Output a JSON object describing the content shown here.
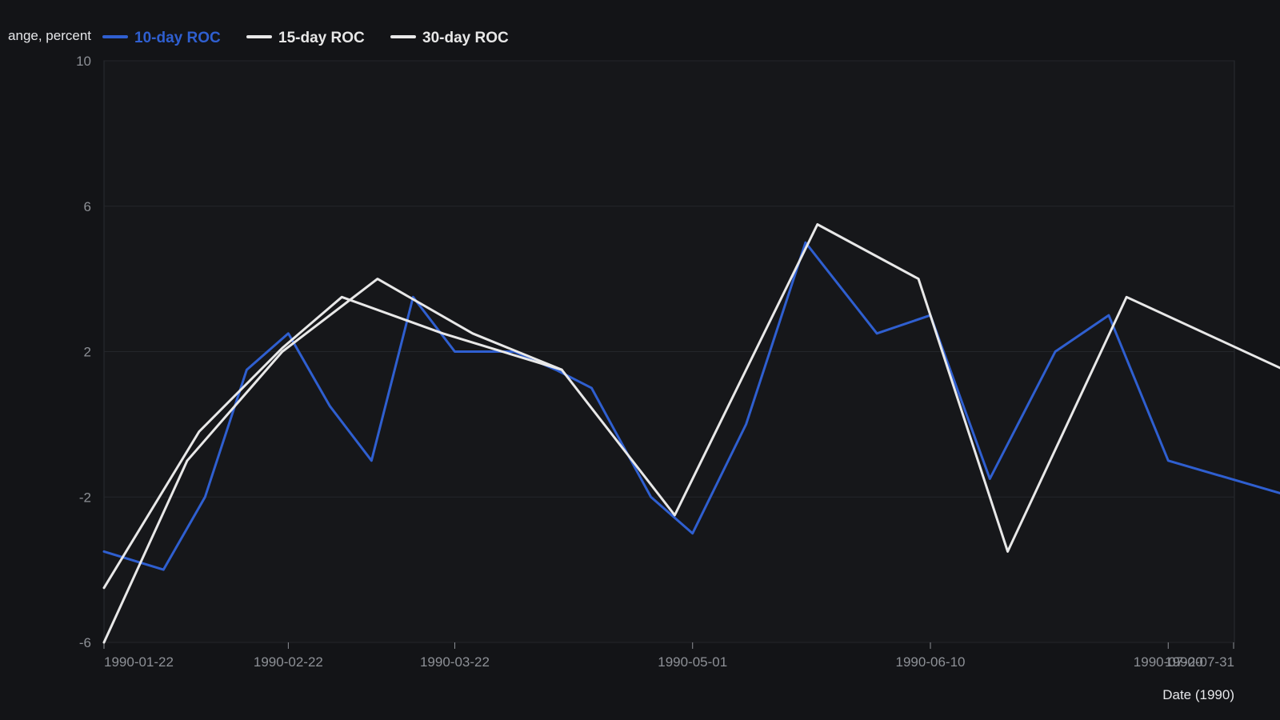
{
  "colors": {
    "background": "#131417",
    "plot_background": "#16171a",
    "grid": "#24262b",
    "tick_text": "#8d9096",
    "axis_title_text": "#e6e7ea",
    "series_10day": "#2f5fd0",
    "series_15day": "#e8e8e8",
    "series_30day": "#e8e8e8"
  },
  "chart_data": {
    "type": "line",
    "title": "",
    "ylabel": "ange, percent",
    "xlabel": "Date (1990)",
    "ylim": [
      -6,
      10
    ],
    "xlim": [
      "1990-01-22",
      "1990-08-10"
    ],
    "yticks": [
      -6,
      -2,
      2,
      6,
      10
    ],
    "yticklabels": [
      "-6",
      "-2",
      "2",
      "6",
      "10"
    ],
    "xticks": [
      "1990-01-22",
      "1990-02-22",
      "1990-03-22",
      "1990-05-01",
      "1990-06-10",
      "1990-07-20",
      "1990-07-31"
    ],
    "grid": true,
    "legend_position": "top-left",
    "series": [
      {
        "name": "10-day ROC",
        "color": "#2f5fd0",
        "points": [
          [
            "1990-01-22",
            -3.5
          ],
          [
            "1990-02-01",
            -4.0
          ],
          [
            "1990-02-08",
            -2.0
          ],
          [
            "1990-02-15",
            1.5
          ],
          [
            "1990-02-22",
            2.5
          ],
          [
            "1990-03-01",
            0.5
          ],
          [
            "1990-03-08",
            -1.0
          ],
          [
            "1990-03-15",
            3.5
          ],
          [
            "1990-03-22",
            2.0
          ],
          [
            "1990-04-01",
            2.0
          ],
          [
            "1990-04-08",
            1.5
          ],
          [
            "1990-04-14",
            1.0
          ],
          [
            "1990-04-24",
            -2.0
          ],
          [
            "1990-05-01",
            -3.0
          ],
          [
            "1990-05-10",
            0.0
          ],
          [
            "1990-05-20",
            5.0
          ],
          [
            "1990-06-01",
            2.5
          ],
          [
            "1990-06-10",
            3.0
          ],
          [
            "1990-06-20",
            -1.5
          ],
          [
            "1990-07-01",
            2.0
          ],
          [
            "1990-07-10",
            3.0
          ],
          [
            "1990-07-20",
            -1.0
          ],
          [
            "1990-08-31",
            -3.0
          ]
        ]
      },
      {
        "name": "15-day ROC",
        "color": "#e8e8e8",
        "points": [
          [
            "1990-01-22",
            -4.5
          ],
          [
            "1990-02-07",
            -0.2
          ],
          [
            "1990-02-21",
            2.1
          ],
          [
            "1990-03-03",
            3.5
          ],
          [
            "1990-03-20",
            2.5
          ],
          [
            "1990-04-09",
            1.5
          ],
          [
            "1990-04-28",
            -2.5
          ],
          [
            "1990-05-22",
            5.5
          ],
          [
            "1990-06-08",
            4.0
          ],
          [
            "1990-06-23",
            -3.5
          ],
          [
            "1990-07-13",
            3.5
          ],
          [
            "1990-08-31",
            -0.2
          ]
        ]
      },
      {
        "name": "30-day ROC",
        "color": "#e8e8e8",
        "points": [
          [
            "1990-01-22",
            -6.0
          ],
          [
            "1990-02-05",
            -1.0
          ],
          [
            "1990-02-21",
            2.0
          ],
          [
            "1990-03-09",
            4.0
          ],
          [
            "1990-03-25",
            2.5
          ],
          [
            "1990-04-09",
            1.5
          ],
          [
            "1990-04-09",
            1.5
          ],
          [
            "1990-04-09",
            1.5
          ]
        ]
      }
    ]
  }
}
